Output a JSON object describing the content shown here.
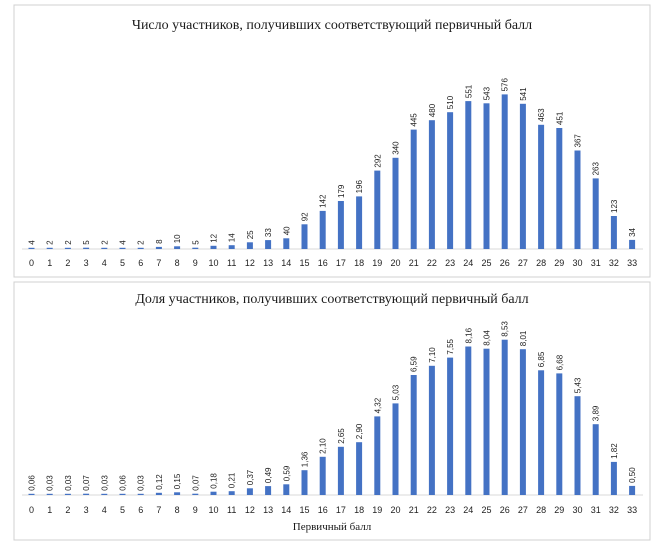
{
  "chart_data": [
    {
      "type": "bar",
      "title": "Число участников, получивших соответствующий первичный балл",
      "xlabel": "",
      "ylabel": "",
      "color": "#4472c4",
      "grid": false,
      "categories": [
        "0",
        "1",
        "2",
        "3",
        "4",
        "5",
        "6",
        "7",
        "8",
        "9",
        "10",
        "11",
        "12",
        "13",
        "14",
        "15",
        "16",
        "17",
        "18",
        "19",
        "20",
        "21",
        "22",
        "23",
        "24",
        "25",
        "26",
        "27",
        "28",
        "29",
        "30",
        "31",
        "32",
        "33"
      ],
      "values": [
        4,
        2,
        2,
        5,
        2,
        4,
        2,
        8,
        10,
        5,
        12,
        14,
        25,
        33,
        40,
        92,
        142,
        179,
        196,
        292,
        340,
        445,
        480,
        510,
        551,
        543,
        576,
        541,
        463,
        451,
        367,
        263,
        123,
        34
      ],
      "value_labels": [
        "4",
        "2",
        "2",
        "5",
        "2",
        "4",
        "2",
        "8",
        "10",
        "5",
        "12",
        "14",
        "25",
        "33",
        "40",
        "92",
        "142",
        "179",
        "196",
        "292",
        "340",
        "445",
        "480",
        "510",
        "551",
        "543",
        "576",
        "541",
        "463",
        "451",
        "367",
        "263",
        "123",
        "34"
      ],
      "ylim": [
        0,
        600
      ]
    },
    {
      "type": "bar",
      "title": "Доля участников, получивших соответствующий первичный балл",
      "xlabel": "Первичный балл",
      "ylabel": "",
      "color": "#4472c4",
      "grid": false,
      "categories": [
        "0",
        "1",
        "2",
        "3",
        "4",
        "5",
        "6",
        "7",
        "8",
        "9",
        "10",
        "11",
        "12",
        "13",
        "14",
        "15",
        "16",
        "17",
        "18",
        "19",
        "20",
        "21",
        "22",
        "23",
        "24",
        "25",
        "26",
        "27",
        "28",
        "29",
        "30",
        "31",
        "32",
        "33"
      ],
      "values": [
        0.06,
        0.03,
        0.03,
        0.07,
        0.03,
        0.06,
        0.03,
        0.12,
        0.15,
        0.07,
        0.18,
        0.21,
        0.37,
        0.49,
        0.59,
        1.36,
        2.1,
        2.65,
        2.9,
        4.32,
        5.03,
        6.59,
        7.1,
        7.55,
        8.16,
        8.04,
        8.53,
        8.01,
        6.85,
        6.68,
        5.43,
        3.89,
        1.82,
        0.5
      ],
      "value_labels": [
        "0,06",
        "0,03",
        "0,03",
        "0,07",
        "0,03",
        "0,06",
        "0,03",
        "0,12",
        "0,15",
        "0,07",
        "0,18",
        "0,21",
        "0,37",
        "0,49",
        "0,59",
        "1,36",
        "2,10",
        "2,65",
        "2,90",
        "4,32",
        "5,03",
        "6,59",
        "7,10",
        "7,55",
        "8,16",
        "8,04",
        "8,53",
        "8,01",
        "6,85",
        "6,68",
        "5,43",
        "3,89",
        "1,82",
        "0,50"
      ],
      "ylim": [
        0,
        8.9
      ]
    }
  ]
}
